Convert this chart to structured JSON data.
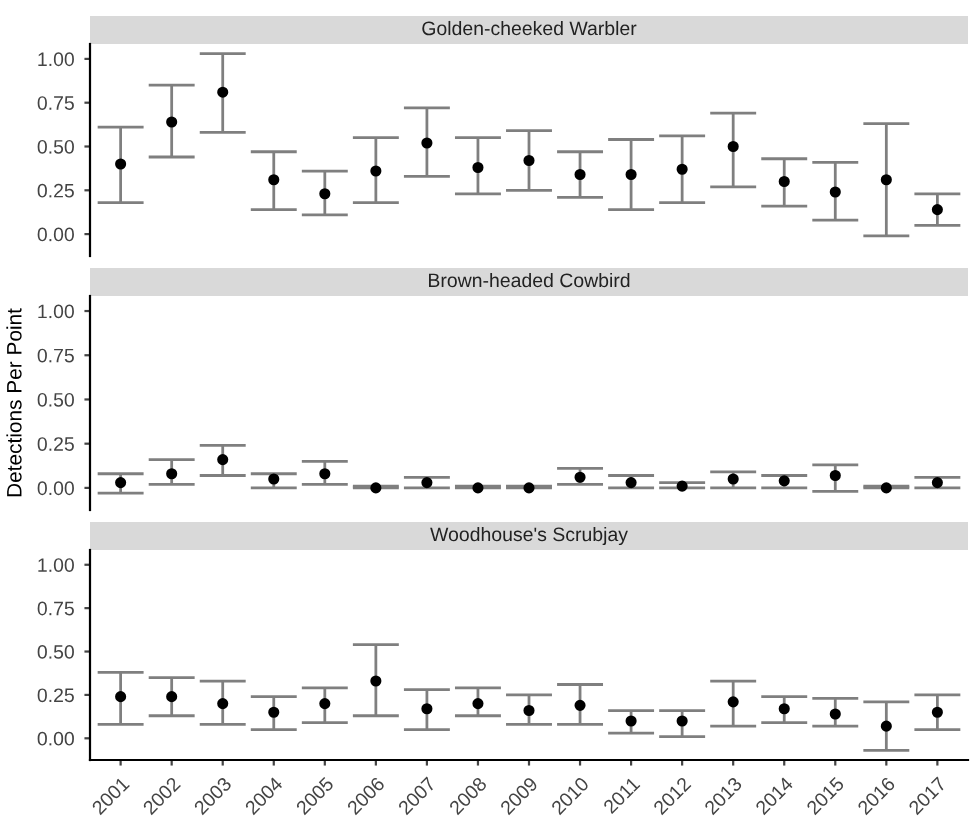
{
  "chart_data": [
    {
      "type": "scatter",
      "title": "Golden-cheeked Warbler",
      "categories": [
        "2001",
        "2002",
        "2003",
        "2004",
        "2005",
        "2006",
        "2007",
        "2008",
        "2009",
        "2010",
        "2011",
        "2012",
        "2013",
        "2014",
        "2015",
        "2016",
        "2017"
      ],
      "series": [
        {
          "color": "#000000",
          "values": [
            0.4,
            0.64,
            0.81,
            0.31,
            0.23,
            0.36,
            0.52,
            0.38,
            0.42,
            0.34,
            0.34,
            0.37,
            0.5,
            0.3,
            0.24,
            0.31,
            0.14
          ],
          "errors": [
            [
              0.18,
              0.61
            ],
            [
              0.44,
              0.85
            ],
            [
              0.58,
              1.03
            ],
            [
              0.14,
              0.47
            ],
            [
              0.11,
              0.36
            ],
            [
              0.18,
              0.55
            ],
            [
              0.33,
              0.72
            ],
            [
              0.23,
              0.55
            ],
            [
              0.25,
              0.59
            ],
            [
              0.21,
              0.47
            ],
            [
              0.14,
              0.54
            ],
            [
              0.18,
              0.56
            ],
            [
              0.27,
              0.69
            ],
            [
              0.16,
              0.43
            ],
            [
              0.08,
              0.41
            ],
            [
              -0.01,
              0.63
            ],
            [
              0.05,
              0.23
            ]
          ]
        }
      ],
      "ylim": [
        -0.125,
        1.085
      ],
      "yticks": [
        {
          "value": 0,
          "label": "0.00"
        },
        {
          "value": 0.25,
          "label": "0.25"
        },
        {
          "value": 0.5,
          "label": "0.50"
        },
        {
          "value": 0.75,
          "label": "0.75"
        },
        {
          "value": 1,
          "label": "1.00"
        }
      ],
      "tick_labels": "y",
      "marker": "circle",
      "grid": false,
      "legend": false
    },
    {
      "type": "scatter",
      "title": "Brown-headed Cowbird",
      "ylabel": "Detections Per Point",
      "categories": [
        "2001",
        "2002",
        "2003",
        "2004",
        "2005",
        "2006",
        "2007",
        "2008",
        "2009",
        "2010",
        "2011",
        "2012",
        "2013",
        "2014",
        "2015",
        "2016",
        "2017"
      ],
      "series": [
        {
          "color": "#000000",
          "values": [
            0.03,
            0.08,
            0.16,
            0.05,
            0.08,
            0.0,
            0.03,
            0.0,
            0.0,
            0.06,
            0.03,
            0.01,
            0.05,
            0.04,
            0.07,
            0.0,
            0.03
          ],
          "errors": [
            [
              -0.03,
              0.08
            ],
            [
              0.02,
              0.16
            ],
            [
              0.07,
              0.24
            ],
            [
              0.0,
              0.08
            ],
            [
              0.02,
              0.15
            ],
            [
              0.0,
              0.01
            ],
            [
              0.0,
              0.06
            ],
            [
              0.0,
              0.01
            ],
            [
              0.0,
              0.01
            ],
            [
              0.02,
              0.11
            ],
            [
              0.0,
              0.07
            ],
            [
              0.0,
              0.03
            ],
            [
              0.0,
              0.09
            ],
            [
              0.0,
              0.07
            ],
            [
              -0.02,
              0.13
            ],
            [
              0.0,
              0.01
            ],
            [
              0.0,
              0.06
            ]
          ]
        }
      ],
      "ylim": [
        -0.125,
        1.085
      ],
      "yticks": [
        {
          "value": 0,
          "label": "0.00"
        },
        {
          "value": 0.25,
          "label": "0.25"
        },
        {
          "value": 0.5,
          "label": "0.50"
        },
        {
          "value": 0.75,
          "label": "0.75"
        },
        {
          "value": 1,
          "label": "1.00"
        }
      ],
      "tick_labels": "y",
      "marker": "circle",
      "grid": false,
      "legend": false
    },
    {
      "type": "scatter",
      "title": "Woodhouse's Scrubjay",
      "categories": [
        "2001",
        "2002",
        "2003",
        "2004",
        "2005",
        "2006",
        "2007",
        "2008",
        "2009",
        "2010",
        "2011",
        "2012",
        "2013",
        "2014",
        "2015",
        "2016",
        "2017"
      ],
      "series": [
        {
          "color": "#000000",
          "values": [
            0.24,
            0.24,
            0.2,
            0.15,
            0.2,
            0.33,
            0.17,
            0.2,
            0.16,
            0.19,
            0.1,
            0.1,
            0.21,
            0.17,
            0.14,
            0.07,
            0.15
          ],
          "errors": [
            [
              0.08,
              0.38
            ],
            [
              0.13,
              0.35
            ],
            [
              0.08,
              0.33
            ],
            [
              0.05,
              0.24
            ],
            [
              0.09,
              0.29
            ],
            [
              0.13,
              0.54
            ],
            [
              0.05,
              0.28
            ],
            [
              0.13,
              0.29
            ],
            [
              0.08,
              0.25
            ],
            [
              0.08,
              0.31
            ],
            [
              0.03,
              0.16
            ],
            [
              0.01,
              0.16
            ],
            [
              0.07,
              0.33
            ],
            [
              0.09,
              0.24
            ],
            [
              0.07,
              0.23
            ],
            [
              -0.07,
              0.21
            ],
            [
              0.05,
              0.25
            ]
          ]
        }
      ],
      "ylim": [
        -0.125,
        1.085
      ],
      "yticks": [
        {
          "value": 0,
          "label": "0.00"
        },
        {
          "value": 0.25,
          "label": "0.25"
        },
        {
          "value": 0.5,
          "label": "0.50"
        },
        {
          "value": 0.75,
          "label": "0.75"
        },
        {
          "value": 1,
          "label": "1.00"
        }
      ],
      "marker": "circle",
      "grid": false,
      "legend": false
    }
  ]
}
